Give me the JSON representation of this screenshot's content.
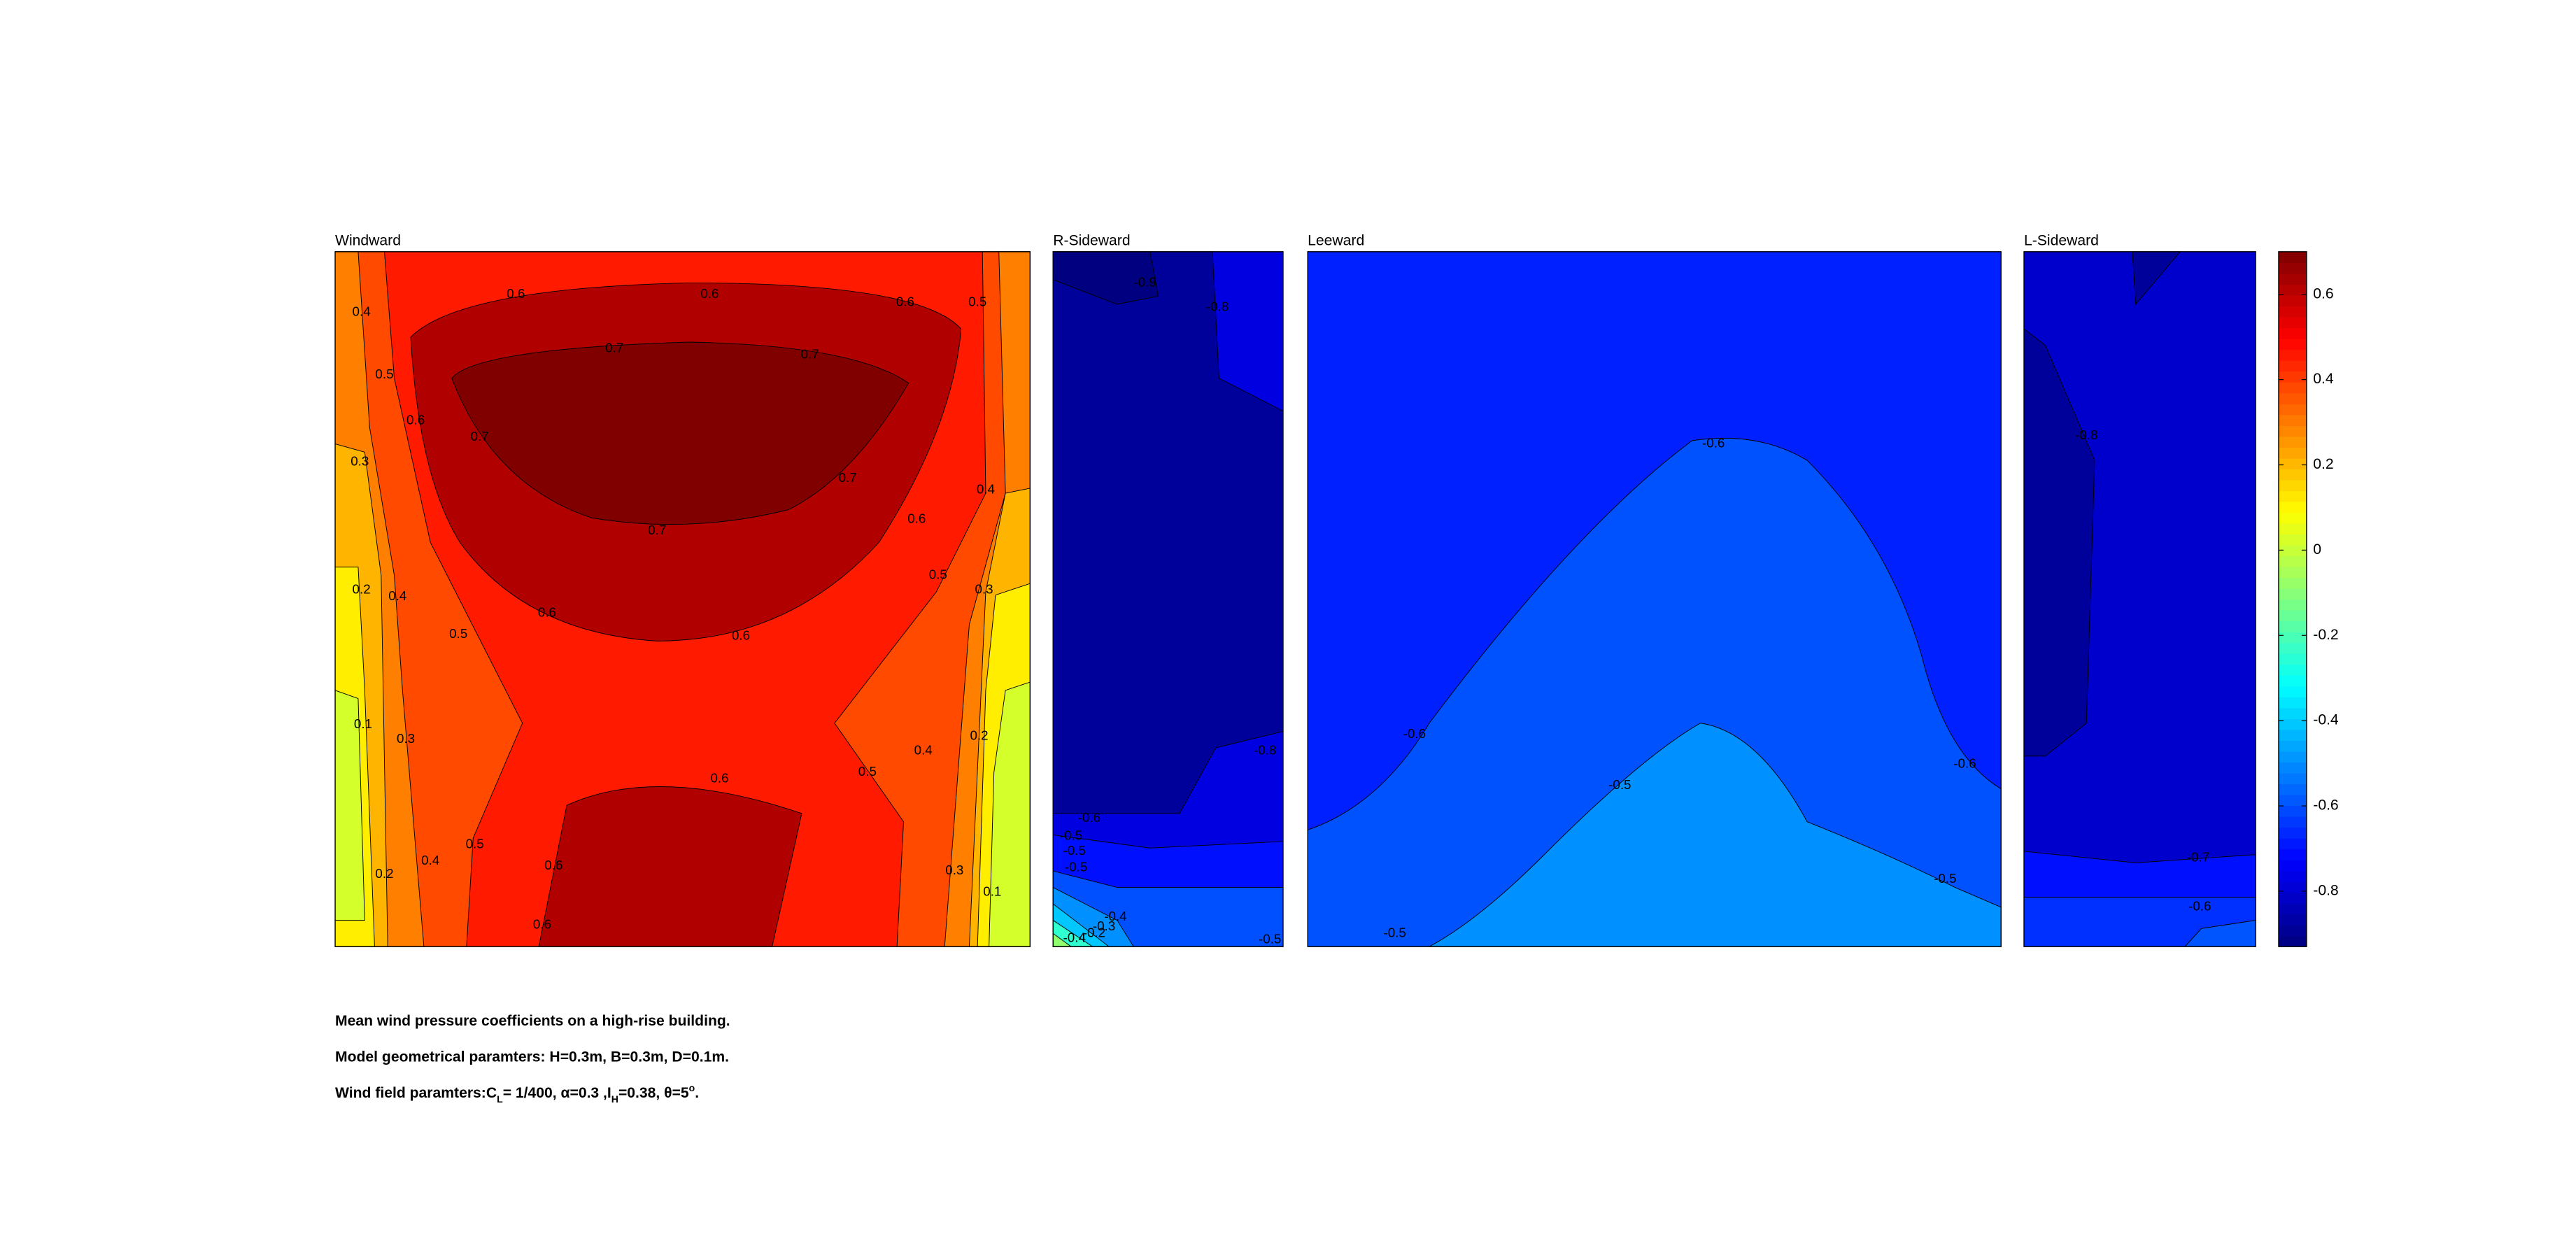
{
  "chart_data": {
    "type": "contour",
    "panels": [
      {
        "title": "Windward",
        "contour_labels": [
          0.4,
          0.5,
          0.6,
          0.3,
          0.6,
          0.6,
          0.6,
          0.5,
          0.7,
          0.7,
          0.7,
          0.7,
          0.7,
          0.6,
          0.4,
          0.5,
          0.2,
          0.4,
          0.5,
          0.6,
          0.6,
          0.3,
          0.1,
          0.3,
          0.2,
          0.4,
          0.5,
          0.6,
          0.2,
          0.4,
          0.5,
          0.6,
          0.6,
          0.3,
          0.1
        ]
      },
      {
        "title": "R-Sideward",
        "contour_labels": [
          -0.9,
          -0.8,
          -0.8,
          -0.6,
          -0.5,
          -0.5,
          -0.5,
          -0.4,
          -0.3,
          -0.4,
          -0.2,
          -0.5
        ]
      },
      {
        "title": "Leeward",
        "contour_labels": [
          -0.6,
          -0.6,
          -0.5,
          -0.6,
          -0.5,
          -0.5
        ]
      },
      {
        "title": "L-Sideward",
        "contour_labels": [
          -0.8,
          -0.7,
          -0.6
        ]
      }
    ],
    "colorbar": {
      "clim": [
        -0.93,
        0.7
      ],
      "ticks": [
        0.6,
        0.4,
        0.2,
        0,
        -0.2,
        -0.4,
        -0.6,
        -0.8
      ]
    },
    "captions": [
      "Mean wind pressure coefficients on a high-rise building.",
      "Model geometrical paramters: H=0.3m, B=0.3m, D=0.1m.",
      [
        "Wind field paramters:C",
        "L",
        "= 1/400, α=0.3 ,I",
        "H",
        "=0.38, θ=5",
        "o",
        "."
      ]
    ]
  }
}
